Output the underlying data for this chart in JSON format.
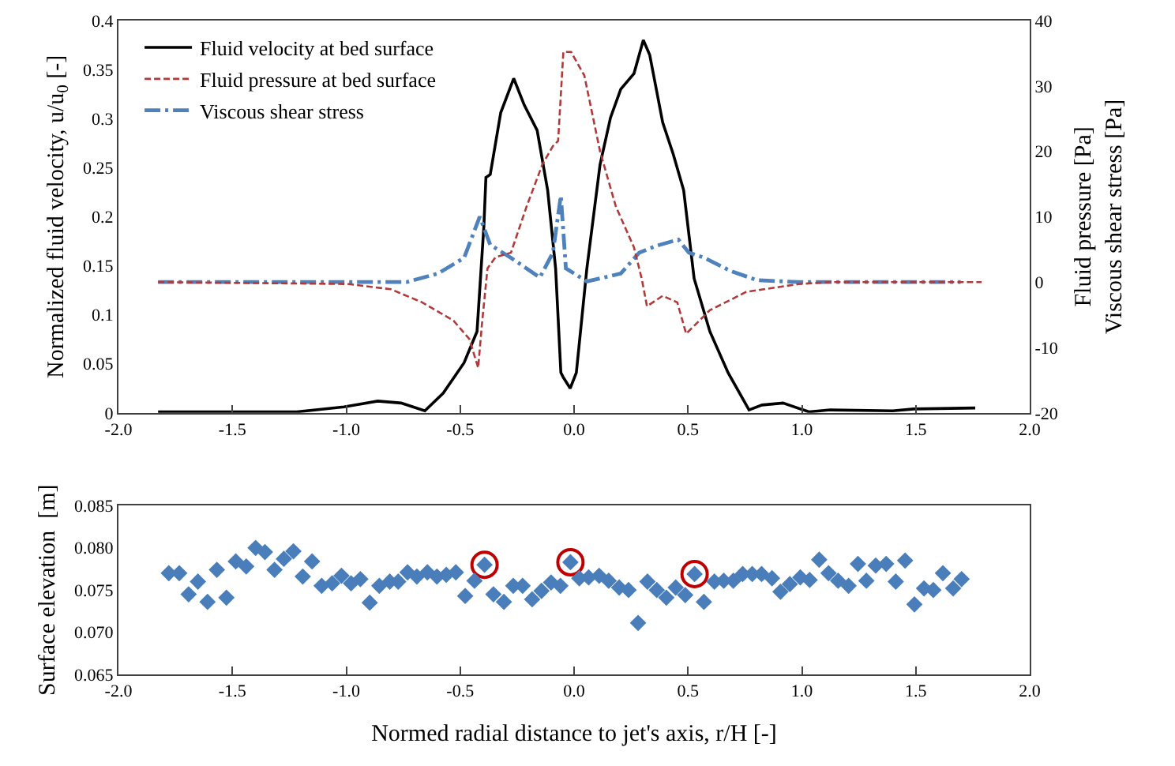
{
  "chart_data": [
    {
      "type": "line",
      "ylabel": "Normalized fluid velocity, u/u$_{0}$ [-]",
      "y2label": "Fluid pressure [Pa]\nViscous shear stress [Pa]",
      "xlim": [
        -2,
        2
      ],
      "xticks": [
        {
          "value": -2,
          "label": "-2.0"
        },
        {
          "value": -1.5,
          "label": "-1.5"
        },
        {
          "value": -1,
          "label": "-1.0"
        },
        {
          "value": -0.5,
          "label": "-0.5"
        },
        {
          "value": 0,
          "label": "0.0"
        },
        {
          "value": 0.5,
          "label": "0.5"
        },
        {
          "value": 1,
          "label": "1.0"
        },
        {
          "value": 1.5,
          "label": "1.5"
        },
        {
          "value": 2,
          "label": "2.0"
        }
      ],
      "ylim": [
        0,
        0.4
      ],
      "yticks": [
        0,
        0.05,
        0.1,
        0.15,
        0.2,
        0.25,
        0.3,
        0.35,
        0.4
      ],
      "y2lim": [
        -20,
        40
      ],
      "y2ticks": [
        -20,
        -10,
        0,
        10,
        20,
        30,
        40
      ],
      "legend": "top left",
      "series": [
        {
          "name": "Fluid velocity at bed surface",
          "color": "#000000",
          "line_style": "solid",
          "x": [
            -1.826,
            -1.53,
            -1.217,
            -1.01,
            -0.862,
            -0.759,
            -0.655,
            -0.575,
            -0.483,
            -0.426,
            -0.396,
            -0.387,
            -0.368,
            -0.322,
            -0.265,
            -0.219,
            -0.162,
            -0.116,
            -0.081,
            -0.058,
            -0.047,
            -0.017,
            0.01,
            0.056,
            0.114,
            0.16,
            0.205,
            0.263,
            0.304,
            0.332,
            0.389,
            0.435,
            0.481,
            0.527,
            0.596,
            0.676,
            0.768,
            0.825,
            0.917,
            1.031,
            1.124,
            1.399,
            1.491,
            1.761
          ],
          "values": [
            0.001,
            0.001,
            0.001,
            0.006,
            0.012,
            0.01,
            0.002,
            0.02,
            0.051,
            0.083,
            0.19,
            0.24,
            0.243,
            0.306,
            0.341,
            0.314,
            0.288,
            0.227,
            0.147,
            0.041,
            0.036,
            0.025,
            0.041,
            0.147,
            0.253,
            0.301,
            0.33,
            0.346,
            0.38,
            0.365,
            0.296,
            0.264,
            0.227,
            0.137,
            0.083,
            0.041,
            0.003,
            0.008,
            0.01,
            0.001,
            0.003,
            0.002,
            0.004,
            0.005
          ]
        },
        {
          "name": "Fluid pressure at bed surface",
          "color": "#b03a3a",
          "line_style": "dashed",
          "axis": "y2",
          "x": [
            -1.826,
            -0.988,
            -0.804,
            -0.667,
            -0.529,
            -0.46,
            -0.421,
            -0.403,
            -0.38,
            -0.345,
            -0.277,
            -0.208,
            -0.139,
            -0.093,
            -0.07,
            -0.047,
            -0.013,
            0.045,
            0.114,
            0.183,
            0.263,
            0.297,
            0.32,
            0.389,
            0.453,
            0.492,
            0.596,
            0.756,
            0.986,
            1.124,
            1.789
          ],
          "values": [
            0,
            -0.3,
            -1.1,
            -3.1,
            -5.9,
            -8.7,
            -13.1,
            -5.9,
            2.1,
            3.8,
            4.5,
            11.6,
            18.0,
            20.8,
            21.6,
            35.2,
            35.2,
            31.6,
            20.0,
            11.6,
            5.3,
            0.5,
            -3.7,
            -2.1,
            -3.1,
            -7.9,
            -4.3,
            -1.5,
            -0.3,
            0,
            0
          ]
        },
        {
          "name": "Viscous shear stress",
          "color": "#4f81bd",
          "line_style": "dashdot",
          "axis": "y2",
          "x": [
            -1.826,
            -0.735,
            -0.598,
            -0.483,
            -0.414,
            -0.368,
            -0.277,
            -0.15,
            -0.093,
            -0.058,
            -0.036,
            0.056,
            0.205,
            0.286,
            0.366,
            0.458,
            0.504,
            0.573,
            0.687,
            0.802,
            0.986,
            1.697
          ],
          "values": [
            0,
            0,
            1.3,
            3.7,
            10.0,
            5.7,
            3.7,
            0.7,
            4.5,
            13.2,
            2.1,
            0.1,
            1.3,
            4.5,
            5.6,
            6.5,
            4.5,
            3.7,
            1.7,
            0.3,
            0,
            0
          ]
        }
      ]
    },
    {
      "type": "scatter",
      "xlabel": "Normed radial distance to jet's axis, r/H [-]",
      "ylabel": "Surface elevation  [m]",
      "xlim": [
        -2,
        2
      ],
      "xticks": [
        {
          "value": -2,
          "label": "-2.0"
        },
        {
          "value": -1.5,
          "label": "-1.5"
        },
        {
          "value": -1,
          "label": "-1.0"
        },
        {
          "value": -0.5,
          "label": "-0.5"
        },
        {
          "value": 0,
          "label": "0.0"
        },
        {
          "value": 0.5,
          "label": "0.5"
        },
        {
          "value": 1,
          "label": "1.0"
        },
        {
          "value": 1.5,
          "label": "1.5"
        },
        {
          "value": 2,
          "label": "2.0"
        }
      ],
      "ylim": [
        0.065,
        0.085
      ],
      "yticks": [
        0.065,
        {
          "value": 0.07,
          "label": "0.070"
        },
        0.075,
        {
          "value": 0.08,
          "label": "0.080"
        },
        0.085
      ],
      "marker": "diamond",
      "series": [
        {
          "color": "#4a7ebb",
          "x": [
            -1.779,
            -1.733,
            -1.692,
            -1.651,
            -1.609,
            -1.568,
            -1.526,
            -1.485,
            -1.439,
            -1.398,
            -1.357,
            -1.315,
            -1.274,
            -1.232,
            -1.191,
            -1.15,
            -1.108,
            -1.062,
            -1.021,
            -0.979,
            -0.938,
            -0.897,
            -0.855,
            -0.809,
            -0.772,
            -0.731,
            -0.69,
            -0.644,
            -0.602,
            -0.561,
            -0.519,
            -0.478,
            -0.437,
            -0.393,
            -0.354,
            -0.308,
            -0.267,
            -0.226,
            -0.184,
            -0.143,
            -0.101,
            -0.06,
            -0.016,
            0.023,
            0.064,
            0.11,
            0.152,
            0.198,
            0.239,
            0.281,
            0.322,
            0.363,
            0.405,
            0.446,
            0.488,
            0.529,
            0.57,
            0.616,
            0.657,
            0.699,
            0.74,
            0.782,
            0.823,
            0.869,
            0.906,
            0.947,
            0.993,
            1.034,
            1.076,
            1.117,
            1.159,
            1.205,
            1.246,
            1.283,
            1.324,
            1.37,
            1.412,
            1.453,
            1.494,
            1.536,
            1.577,
            1.619,
            1.664,
            1.701
          ],
          "values": [
            0.077,
            0.077,
            0.0745,
            0.076,
            0.0736,
            0.0774,
            0.0741,
            0.0784,
            0.0778,
            0.08,
            0.0795,
            0.0774,
            0.0787,
            0.0796,
            0.0766,
            0.0784,
            0.0755,
            0.0758,
            0.0767,
            0.0758,
            0.0763,
            0.0735,
            0.0755,
            0.076,
            0.076,
            0.0771,
            0.0766,
            0.0771,
            0.0766,
            0.0768,
            0.0771,
            0.0743,
            0.0761,
            0.078,
            0.0745,
            0.0736,
            0.0755,
            0.0755,
            0.0739,
            0.0749,
            0.0759,
            0.0755,
            0.0783,
            0.0764,
            0.0765,
            0.0767,
            0.0761,
            0.0753,
            0.075,
            0.0711,
            0.076,
            0.075,
            0.0741,
            0.0753,
            0.0744,
            0.0769,
            0.0736,
            0.076,
            0.0761,
            0.0761,
            0.0769,
            0.0769,
            0.0769,
            0.0764,
            0.0748,
            0.0757,
            0.0765,
            0.0762,
            0.0786,
            0.077,
            0.0761,
            0.0755,
            0.0781,
            0.0761,
            0.0779,
            0.0781,
            0.076,
            0.0785,
            0.0733,
            0.0752,
            0.075,
            0.077,
            0.0752,
            0.0763
          ]
        },
        {
          "color": "#c00000",
          "marker": "circle",
          "x": [
            -0.393,
            -0.016,
            0.529
          ],
          "values": [
            0.078,
            0.0783,
            0.0769
          ]
        }
      ]
    }
  ]
}
